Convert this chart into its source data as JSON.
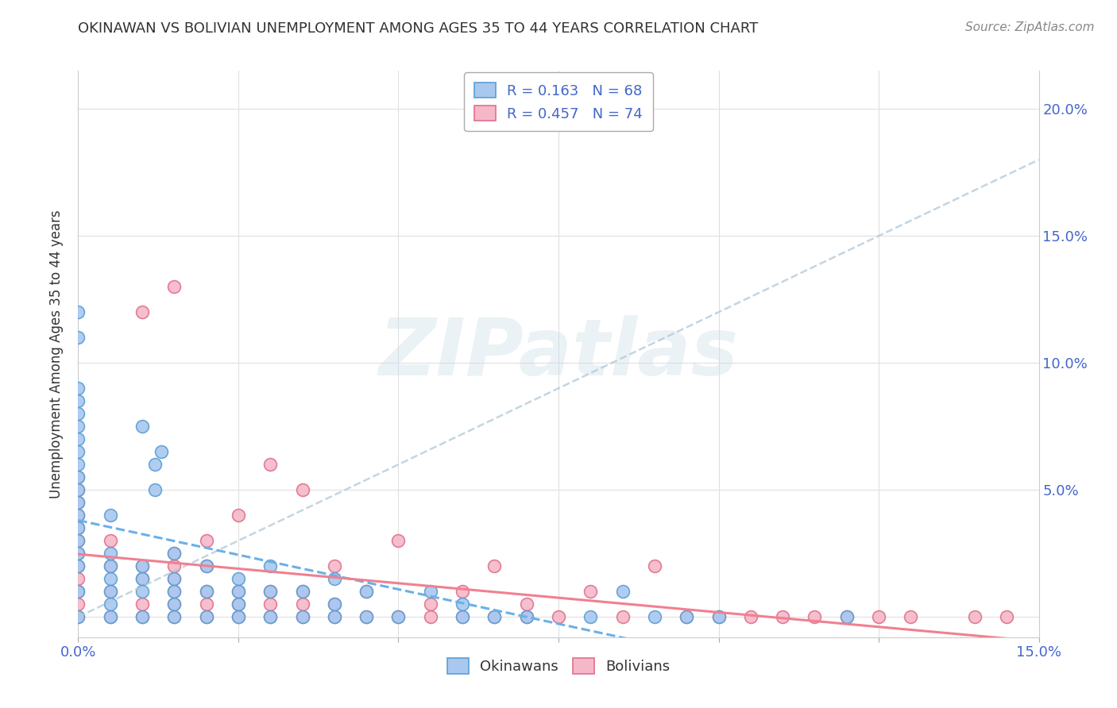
{
  "title": "OKINAWAN VS BOLIVIAN UNEMPLOYMENT AMONG AGES 35 TO 44 YEARS CORRELATION CHART",
  "source": "Source: ZipAtlas.com",
  "ylabel": "Unemployment Among Ages 35 to 44 years",
  "xmin": 0.0,
  "xmax": 0.15,
  "ymin": -0.008,
  "ymax": 0.215,
  "okinawan_color": "#a8c8f0",
  "okinawan_edge": "#5a9fd4",
  "bolivian_color": "#f5b8c8",
  "bolivian_edge": "#e07090",
  "trendline_okinawan": "#6ab0e8",
  "trendline_bolivian": "#f08090",
  "trendline_global": "#b0c8d8",
  "R_okinawan": 0.163,
  "N_okinawan": 68,
  "R_bolivian": 0.457,
  "N_bolivian": 74,
  "legend_label_1": "Okinawans",
  "legend_label_2": "Bolivians",
  "watermark": "ZIPatlas",
  "okinawan_x": [
    0.0,
    0.0,
    0.0,
    0.0,
    0.0,
    0.0,
    0.0,
    0.0,
    0.0,
    0.0,
    0.0,
    0.0,
    0.0,
    0.0,
    0.0,
    0.0,
    0.0,
    0.0,
    0.0,
    0.005,
    0.005,
    0.005,
    0.005,
    0.005,
    0.005,
    0.005,
    0.01,
    0.01,
    0.01,
    0.01,
    0.01,
    0.012,
    0.012,
    0.013,
    0.015,
    0.015,
    0.015,
    0.015,
    0.015,
    0.02,
    0.02,
    0.02,
    0.025,
    0.025,
    0.025,
    0.025,
    0.03,
    0.03,
    0.03,
    0.035,
    0.035,
    0.04,
    0.04,
    0.04,
    0.045,
    0.045,
    0.05,
    0.055,
    0.06,
    0.06,
    0.065,
    0.07,
    0.08,
    0.085,
    0.09,
    0.095,
    0.1,
    0.12
  ],
  "okinawan_y": [
    0.0,
    0.01,
    0.02,
    0.025,
    0.03,
    0.035,
    0.04,
    0.045,
    0.05,
    0.055,
    0.06,
    0.065,
    0.07,
    0.075,
    0.08,
    0.085,
    0.09,
    0.11,
    0.12,
    0.0,
    0.005,
    0.01,
    0.015,
    0.02,
    0.025,
    0.04,
    0.0,
    0.01,
    0.015,
    0.02,
    0.075,
    0.05,
    0.06,
    0.065,
    0.0,
    0.005,
    0.01,
    0.015,
    0.025,
    0.0,
    0.01,
    0.02,
    0.0,
    0.005,
    0.01,
    0.015,
    0.0,
    0.01,
    0.02,
    0.0,
    0.01,
    0.0,
    0.005,
    0.015,
    0.0,
    0.01,
    0.0,
    0.01,
    0.0,
    0.005,
    0.0,
    0.0,
    0.0,
    0.01,
    0.0,
    0.0,
    0.0,
    0.0
  ],
  "bolivian_x": [
    0.0,
    0.0,
    0.0,
    0.0,
    0.0,
    0.0,
    0.0,
    0.0,
    0.0,
    0.0,
    0.0,
    0.0,
    0.005,
    0.005,
    0.005,
    0.005,
    0.01,
    0.01,
    0.01,
    0.01,
    0.01,
    0.015,
    0.015,
    0.015,
    0.015,
    0.015,
    0.015,
    0.015,
    0.02,
    0.02,
    0.02,
    0.02,
    0.02,
    0.025,
    0.025,
    0.025,
    0.025,
    0.03,
    0.03,
    0.03,
    0.03,
    0.035,
    0.035,
    0.035,
    0.035,
    0.04,
    0.04,
    0.04,
    0.045,
    0.045,
    0.05,
    0.05,
    0.055,
    0.055,
    0.06,
    0.06,
    0.065,
    0.065,
    0.07,
    0.07,
    0.075,
    0.08,
    0.085,
    0.09,
    0.095,
    0.1,
    0.105,
    0.11,
    0.115,
    0.12,
    0.125,
    0.13,
    0.14,
    0.145
  ],
  "bolivian_y": [
    0.0,
    0.005,
    0.01,
    0.015,
    0.02,
    0.025,
    0.03,
    0.035,
    0.04,
    0.045,
    0.05,
    0.055,
    0.0,
    0.01,
    0.02,
    0.03,
    0.0,
    0.005,
    0.015,
    0.02,
    0.12,
    0.0,
    0.005,
    0.01,
    0.015,
    0.02,
    0.025,
    0.13,
    0.0,
    0.005,
    0.01,
    0.02,
    0.03,
    0.0,
    0.005,
    0.01,
    0.04,
    0.0,
    0.005,
    0.01,
    0.06,
    0.0,
    0.005,
    0.01,
    0.05,
    0.0,
    0.005,
    0.02,
    0.0,
    0.01,
    0.0,
    0.03,
    0.0,
    0.005,
    0.0,
    0.01,
    0.0,
    0.02,
    0.0,
    0.005,
    0.0,
    0.01,
    0.0,
    0.02,
    0.0,
    0.0,
    0.0,
    0.0,
    0.0,
    0.0,
    0.0,
    0.0,
    0.0,
    0.0
  ]
}
